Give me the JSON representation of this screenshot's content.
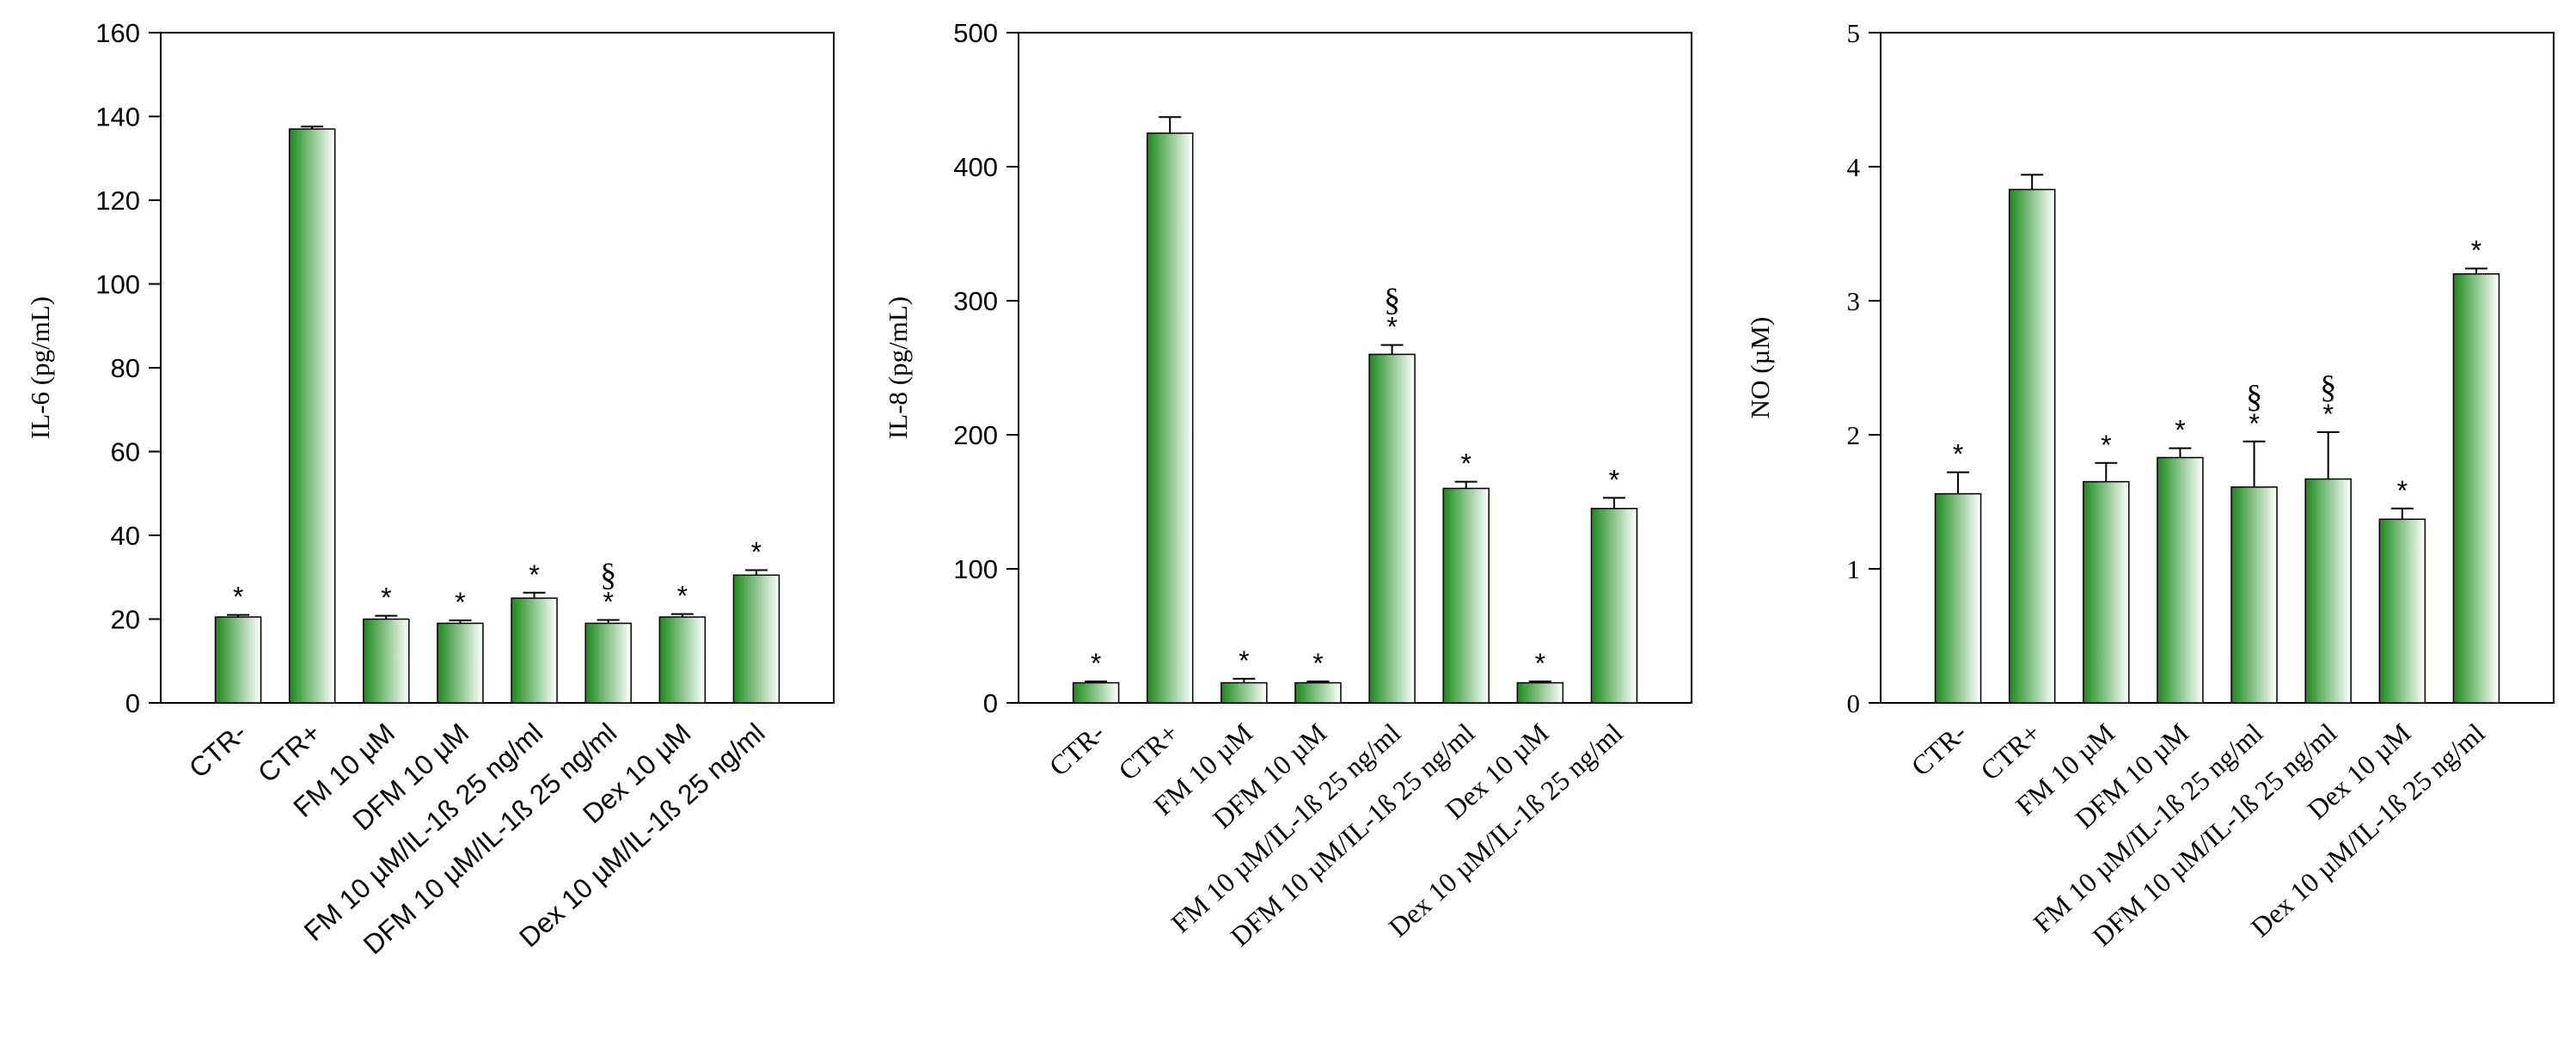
{
  "chart_data": [
    {
      "type": "bar",
      "ylabel": "IL-6 (pg/mL)",
      "color": "#1a8a1a",
      "categories": [
        "CTR-",
        "CTR+",
        "FM 10 µM",
        "DFM 10 µM",
        "FM 10 µM/IL-1ß 25 ng/ml",
        "DFM 10 µM/IL-1ß 25 ng/ml",
        "Dex 10 µM",
        "Dex 10 µM/IL-1ß 25 ng/ml"
      ],
      "values": [
        20.5,
        137,
        20,
        19,
        25,
        19,
        20.5,
        30.5
      ],
      "errors": [
        0.5,
        0.6,
        0.8,
        0.7,
        1.3,
        0.8,
        0.7,
        1.2
      ],
      "stars": [
        "*",
        null,
        "*",
        "*",
        "*",
        "*",
        "*",
        "*"
      ],
      "sections": [
        null,
        null,
        null,
        null,
        null,
        "§",
        null,
        null
      ],
      "ylim": [
        0,
        160
      ],
      "yticks": [
        0,
        20,
        40,
        60,
        80,
        100,
        120,
        140,
        160
      ]
    },
    {
      "type": "bar",
      "ylabel": "IL-8 (pg/mL)",
      "color": "#1a8a1a",
      "categories": [
        "CTR-",
        "CTR+",
        "FM 10 µM",
        "DFM 10 µM",
        "FM 10 µM/IL-1ß 25 ng/ml",
        "DFM 10 µM/IL-1ß 25 ng/ml",
        "Dex 10 µM",
        "Dex 10 µM/IL-1ß 25 ng/ml"
      ],
      "values": [
        15,
        425,
        15,
        15,
        260,
        160,
        15,
        145
      ],
      "errors": [
        1,
        12,
        3,
        1,
        7,
        5,
        1,
        8
      ],
      "stars": [
        "*",
        null,
        "*",
        "*",
        "*",
        "*",
        "*",
        "*"
      ],
      "sections": [
        null,
        null,
        null,
        null,
        "§",
        null,
        null,
        null
      ],
      "ylim": [
        0,
        500
      ],
      "yticks": [
        0,
        100,
        200,
        300,
        400,
        500
      ]
    },
    {
      "type": "bar",
      "ylabel": "NO (µM)",
      "color": "#1a8a1a",
      "categories": [
        "CTR-",
        "CTR+",
        "FM 10 µM",
        "DFM 10 µM",
        "FM 10 µM/IL-1ß 25 ng/ml",
        "DFM 10 µM/IL-1ß 25 ng/ml",
        "Dex 10 µM",
        "Dex 10 µM/IL-1ß 25 ng/ml"
      ],
      "values": [
        1.56,
        3.83,
        1.65,
        1.83,
        1.61,
        1.67,
        1.37,
        3.2
      ],
      "errors": [
        0.16,
        0.11,
        0.14,
        0.07,
        0.34,
        0.35,
        0.08,
        0.04
      ],
      "stars": [
        "*",
        null,
        "*",
        "*",
        "*",
        "*",
        "*",
        "*"
      ],
      "sections": [
        null,
        null,
        null,
        null,
        "§",
        "§",
        null,
        null
      ],
      "ylim": [
        0,
        5
      ],
      "yticks": [
        0,
        1,
        2,
        3,
        4,
        5
      ]
    }
  ]
}
